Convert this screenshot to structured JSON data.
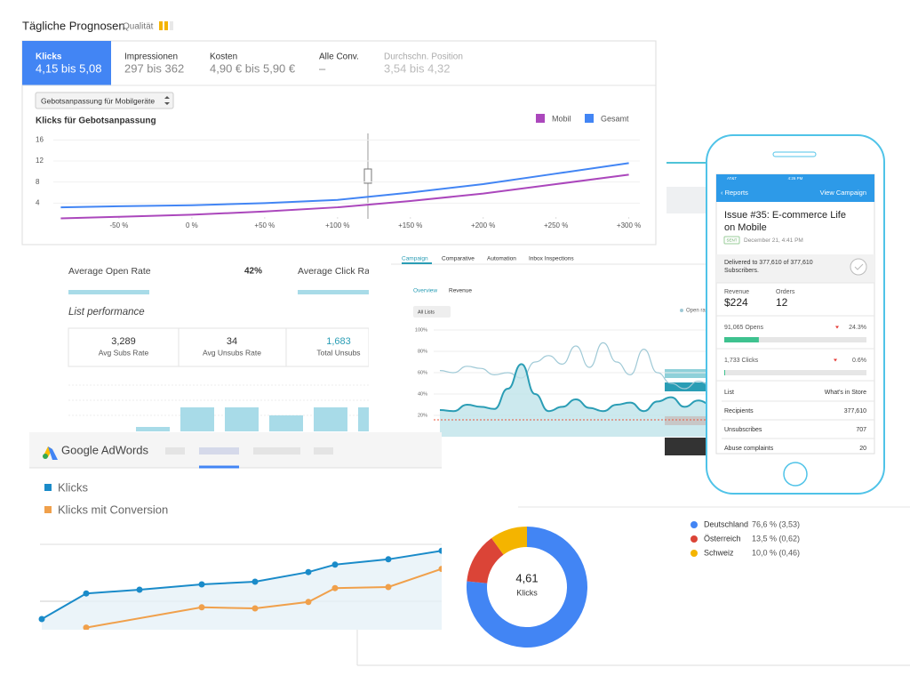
{
  "forecast": {
    "title": "Tägliche Prognosen",
    "quality_label": "Qualität",
    "tabs": [
      {
        "name": "Klicks",
        "value": "4,15 bis 5,08"
      },
      {
        "name": "Impressionen",
        "value": "297 bis 362"
      },
      {
        "name": "Kosten",
        "value": "4,90 € bis 5,90 €"
      },
      {
        "name": "Alle Conv.",
        "value": "–"
      },
      {
        "name": "Durchschn. Position",
        "value": "3,54 bis 4,32"
      }
    ],
    "dropdown": "Gebotsanpassung für Mobilgeräte",
    "chart": {
      "type": "line",
      "title": "Klicks für Gebotsanpassung",
      "x": [
        -90,
        -50,
        0,
        50,
        100,
        150,
        200,
        250,
        300
      ],
      "series": [
        {
          "name": "Mobil",
          "color": "#ab47bc",
          "values": [
            1.1,
            1.4,
            1.8,
            2.4,
            3.2,
            4.4,
            5.8,
            7.6,
            9.4
          ]
        },
        {
          "name": "Gesamt",
          "color": "#4285f4",
          "values": [
            3.2,
            3.4,
            3.6,
            4.0,
            4.6,
            6.0,
            7.6,
            9.6,
            11.6
          ]
        }
      ],
      "xlim": [
        -100,
        310
      ],
      "xticks": [
        {
          "value": -50,
          "label": "-50 %"
        },
        {
          "value": 0,
          "label": "0 %"
        },
        {
          "value": 50,
          "label": "+50 %"
        },
        {
          "value": 100,
          "label": "+100 %"
        },
        {
          "value": 150,
          "label": "+150 %"
        },
        {
          "value": 200,
          "label": "+200 %"
        },
        {
          "value": 250,
          "label": "+250 %"
        },
        {
          "value": 300,
          "label": "+300 %"
        }
      ],
      "ylim": [
        0,
        17
      ],
      "yticks": [
        4,
        8,
        12,
        16
      ],
      "grid": true
    }
  },
  "email": {
    "open_rate": {
      "label": "Average Open Rate",
      "value": "42%"
    },
    "click_rate": {
      "label": "Average Click Rate"
    },
    "list_title": "List performance",
    "stats": [
      {
        "value": "3,289",
        "label": "Avg Subs Rate"
      },
      {
        "value": "34",
        "label": "Avg Unsubs Rate"
      },
      {
        "value": "1,683",
        "label": "Total Unsubs"
      }
    ],
    "bars": {
      "type": "bar",
      "values": [
        6,
        28,
        28,
        19,
        28,
        28
      ],
      "color": "#a8dbe8",
      "ylim": [
        0,
        60
      ]
    }
  },
  "campaign": {
    "tabs": [
      "Campaign",
      "Comparative",
      "Automation",
      "Inbox Inspections"
    ],
    "subtabs": [
      "Overview",
      "Revenue"
    ],
    "dropdown": "All Lists",
    "chart": {
      "type": "line",
      "series": [
        {
          "name": "Open rate",
          "color": "#9fc9d6",
          "values": [
            62,
            60,
            66,
            64,
            58,
            60,
            55,
            70,
            76,
            68,
            85,
            65,
            88,
            70,
            58,
            82,
            60,
            50,
            45,
            52,
            48
          ]
        },
        {
          "color": "#2a9db5",
          "values": [
            25,
            24,
            30,
            28,
            26,
            45,
            68,
            40,
            24,
            28,
            35,
            27,
            24,
            30,
            32,
            24,
            33,
            37,
            28,
            34,
            30
          ]
        }
      ],
      "ylim": [
        0,
        105
      ],
      "yticks": [
        {
          "value": 100,
          "label": "100%"
        },
        {
          "value": 80,
          "label": "80%"
        },
        {
          "value": 60,
          "label": "60%"
        },
        {
          "value": 40,
          "label": "40%"
        },
        {
          "value": 20,
          "label": "20%"
        }
      ]
    }
  },
  "phone": {
    "status": {
      "carrier": "AT&T",
      "time": "4:26 PM"
    },
    "nav": {
      "back": "‹ Reports",
      "action": "View Campaign"
    },
    "title_lines": [
      "Issue #35: E-commerce Life",
      "on Mobile"
    ],
    "badge": "SENT",
    "date": "December 21, 4:41 PM",
    "delivered_lines": [
      "Delivered to 377,610 of 377,610",
      "Subscribers."
    ],
    "stats": [
      {
        "label": "Revenue",
        "value": "$224"
      },
      {
        "label": "Orders",
        "value": "12"
      }
    ],
    "rates": [
      {
        "label": "91,065 Opens",
        "value": 24.3,
        "value_label": "24.3%"
      },
      {
        "label": "1,733 Clicks",
        "value": 0.6,
        "value_label": "0.6%"
      }
    ],
    "rows": [
      [
        "List",
        "What's in Store"
      ],
      [
        "Recipients",
        "377,610"
      ],
      [
        "Unsubscribes",
        "707"
      ],
      [
        "Abuse complaints",
        "20"
      ]
    ]
  },
  "adwords": {
    "brand": "Google AdWords",
    "chart": {
      "type": "line",
      "xlim": [
        0,
        45
      ],
      "ylim": [
        0,
        100
      ],
      "series": [
        {
          "name": "Klicks",
          "color": "#1a8bc9",
          "x": [
            0,
            5,
            11,
            18,
            24,
            30,
            33,
            39,
            45
          ],
          "values": [
            20,
            44,
            47.5,
            52.5,
            55,
            64,
            71,
            76,
            84
          ]
        },
        {
          "name": "Klicks mit Conversion",
          "color": "#f0a04b",
          "x": [
            5,
            18,
            24,
            30,
            33,
            39,
            45
          ],
          "values": [
            12,
            31,
            30,
            36,
            49,
            50,
            67
          ]
        }
      ]
    }
  },
  "donut": {
    "chart": {
      "type": "pie",
      "center_value": "4,61",
      "center_label": "Klicks",
      "categories": [
        "Deutschland",
        "Österreich",
        "Schweiz"
      ],
      "values": [
        76.6,
        13.5,
        10.0
      ],
      "value_labels": [
        "76,6 % (3,53)",
        "13,5 % (0,62)",
        "10,0 % (0,46)"
      ],
      "colors": [
        "#4285f4",
        "#db4437",
        "#f4b400"
      ]
    }
  }
}
